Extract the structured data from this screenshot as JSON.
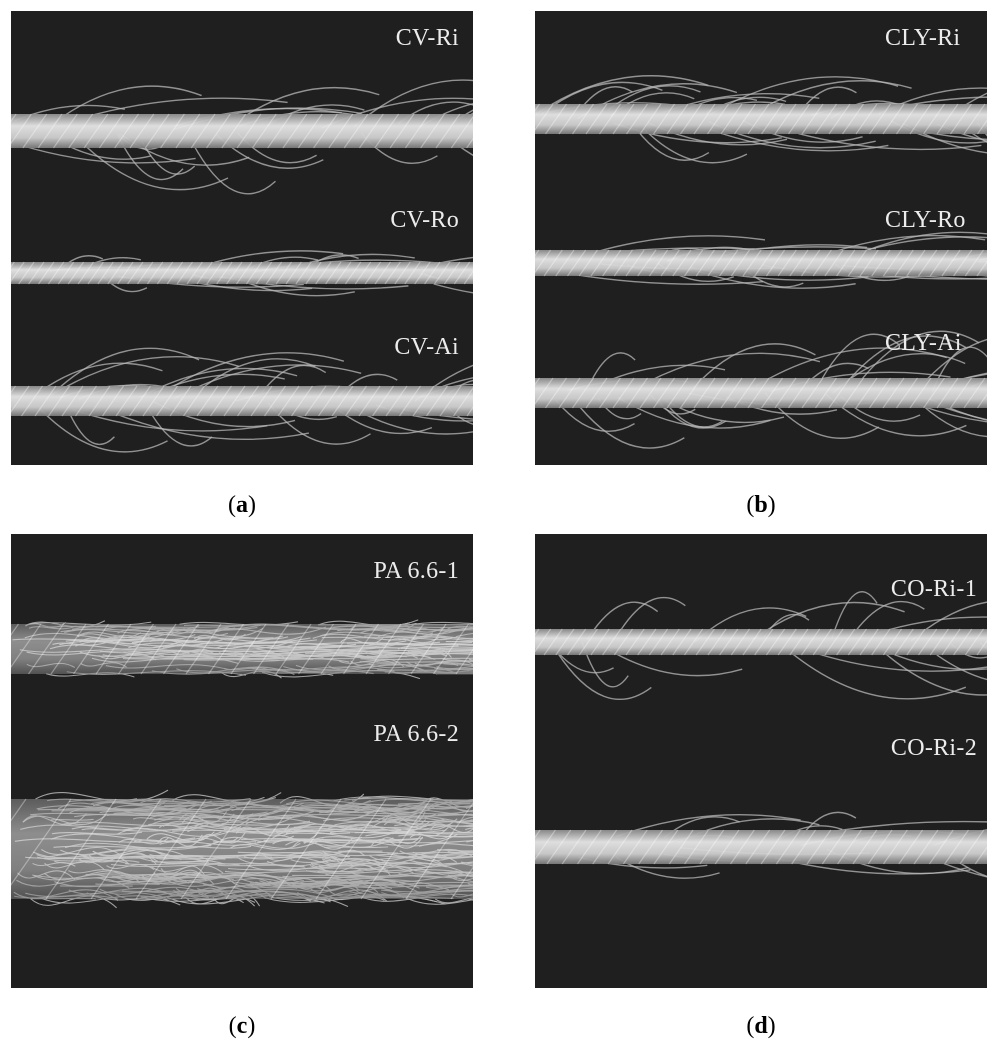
{
  "figure": {
    "panels": [
      {
        "letter": "a",
        "samples": [
          {
            "label": "CV-Ri"
          },
          {
            "label": "CV-Ro"
          },
          {
            "label": "CV-Ai"
          }
        ]
      },
      {
        "letter": "b",
        "samples": [
          {
            "label": "CLY-Ri"
          },
          {
            "label": "CLY-Ro"
          },
          {
            "label": "CLY-Ai"
          }
        ]
      },
      {
        "letter": "c",
        "samples": [
          {
            "label": "PA 6.6-1"
          },
          {
            "label": "PA 6.6-2"
          }
        ]
      },
      {
        "letter": "d",
        "samples": [
          {
            "label": "CO-Ri-1"
          },
          {
            "label": "CO-Ri-2"
          }
        ]
      }
    ],
    "colors": {
      "background": "#1f1f1f",
      "yarn": "#d6d6d6",
      "fiber": "#b9b9b9"
    }
  }
}
